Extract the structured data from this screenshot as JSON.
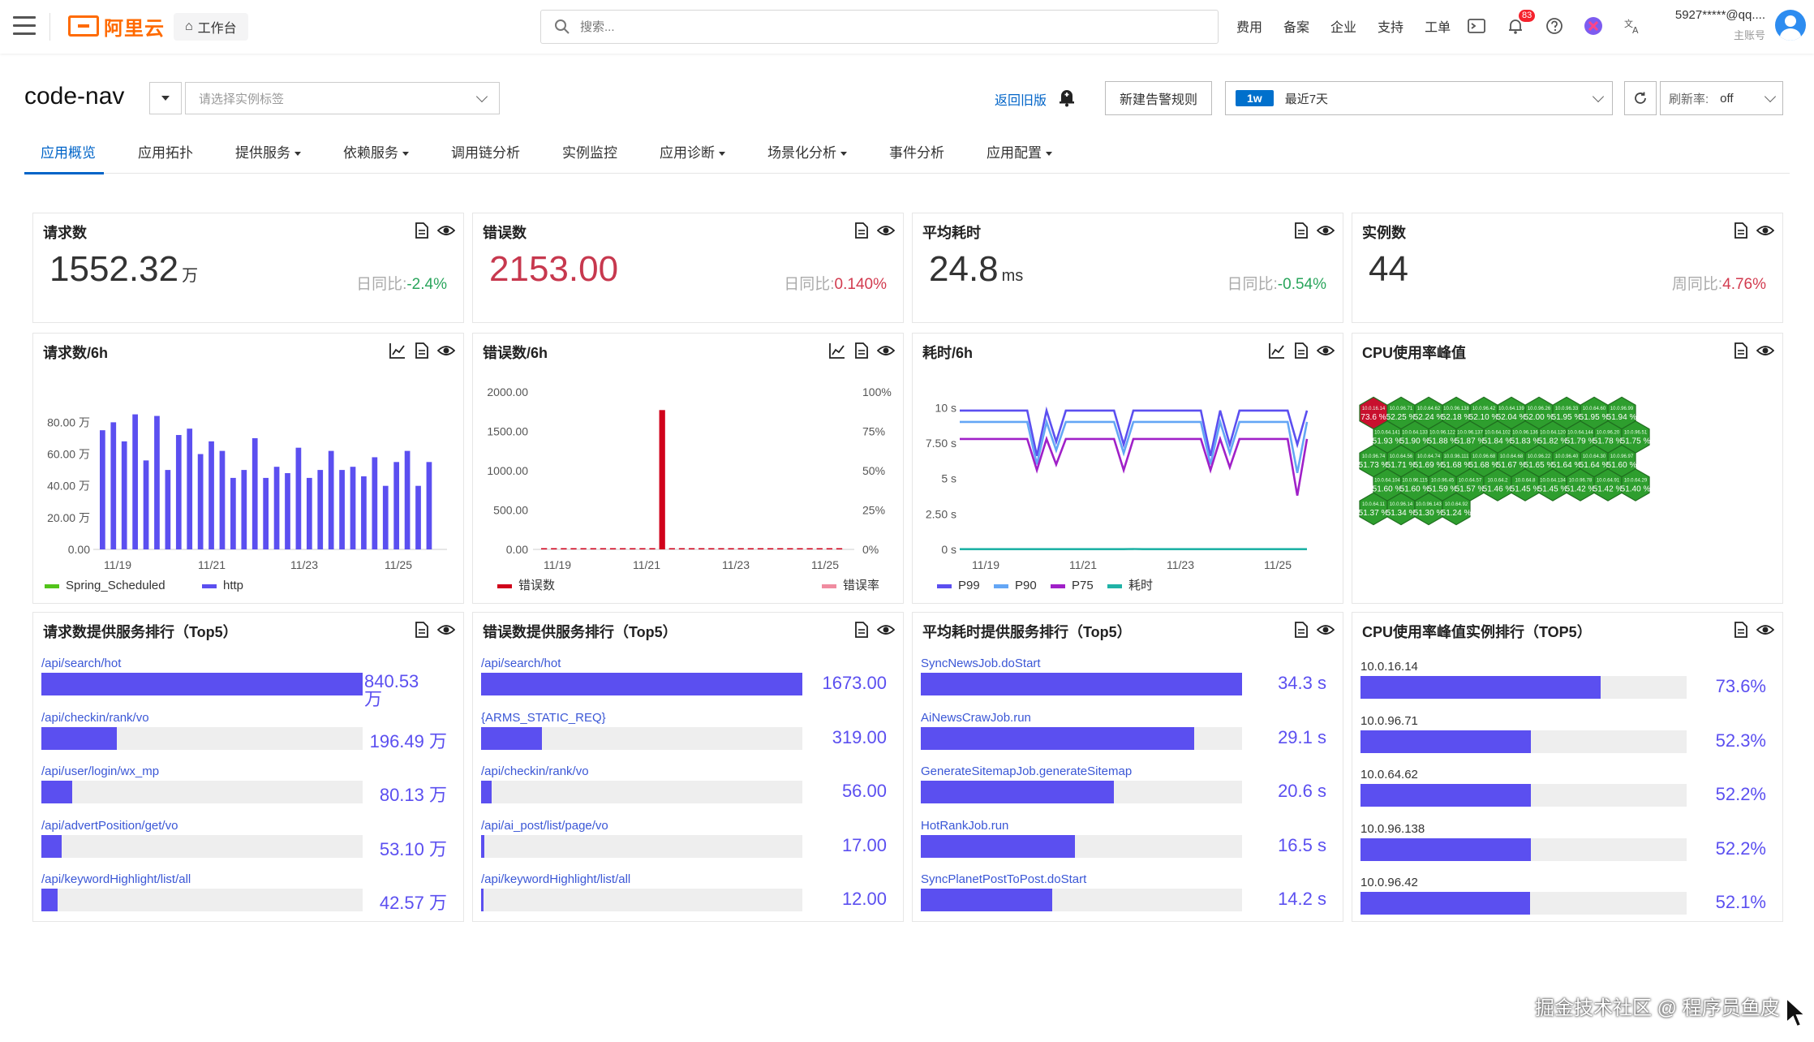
{
  "topbar": {
    "logo_text": "阿里云",
    "workbench": "工作台",
    "search_placeholder": "搜索...",
    "links": [
      "费用",
      "备案",
      "企业",
      "支持",
      "工单"
    ],
    "notification_count": "83",
    "account_name": "5927*****@qq....",
    "account_sub": "主账号"
  },
  "header": {
    "app_name": "code-nav",
    "tag_placeholder": "请选择实例标签",
    "back_old": "返回旧版",
    "new_alert": "新建告警规则",
    "range_tag": "1w",
    "range_text": "最近7天",
    "refresh_label": "刷新率:",
    "refresh_value": "off"
  },
  "tabs": [
    {
      "label": "应用概览",
      "dropdown": false
    },
    {
      "label": "应用拓扑",
      "dropdown": false
    },
    {
      "label": "提供服务",
      "dropdown": true
    },
    {
      "label": "依赖服务",
      "dropdown": true
    },
    {
      "label": "调用链分析",
      "dropdown": false
    },
    {
      "label": "实例监控",
      "dropdown": false
    },
    {
      "label": "应用诊断",
      "dropdown": true
    },
    {
      "label": "场景化分析",
      "dropdown": true
    },
    {
      "label": "事件分析",
      "dropdown": false
    },
    {
      "label": "应用配置",
      "dropdown": true
    }
  ],
  "stats": [
    {
      "title": "请求数",
      "value": "1552.32",
      "unit": "万",
      "cmp_label": "日同比:",
      "cmp_value": "-2.4%",
      "trend": "down",
      "value_color": "#333333"
    },
    {
      "title": "错误数",
      "value": "2153.00",
      "unit": "",
      "cmp_label": "日同比:",
      "cmp_value": "0.140%",
      "trend": "up",
      "value_color": "#c7384e"
    },
    {
      "title": "平均耗时",
      "value": "24.8",
      "unit": "ms",
      "cmp_label": "日同比:",
      "cmp_value": "-0.54%",
      "trend": "down",
      "value_color": "#333333"
    },
    {
      "title": "实例数",
      "value": "44",
      "unit": "",
      "cmp_label": "周同比:",
      "cmp_value": "4.76%",
      "trend": "up",
      "value_color": "#333333"
    }
  ],
  "chart_titles": [
    "请求数/6h",
    "错误数/6h",
    "耗时/6h",
    "CPU使用率峰值"
  ],
  "chart_data": [
    {
      "type": "bar",
      "title": "请求数/6h",
      "x_ticks": [
        "11/19",
        "11/21",
        "11/23",
        "11/25"
      ],
      "y_ticks": [
        "0.00",
        "20.00 万",
        "40.00 万",
        "60.00 万",
        "80.00 万"
      ],
      "ylim": [
        0,
        95
      ],
      "series": [
        {
          "name": "Spring_Scheduled",
          "color": "#52c41a",
          "values": []
        },
        {
          "name": "http",
          "color": "#5b4ff0",
          "values": [
            75,
            80,
            68,
            85,
            56,
            84,
            50,
            72,
            76,
            60,
            68,
            62,
            45,
            50,
            70,
            45,
            52,
            48,
            64,
            45,
            50,
            62,
            50,
            52,
            46,
            58,
            40,
            55,
            62,
            40,
            55
          ]
        }
      ]
    },
    {
      "type": "bar+line",
      "title": "错误数/6h",
      "x_ticks": [
        "11/19",
        "11/21",
        "11/23",
        "11/25"
      ],
      "y_ticks": [
        "0.00",
        "500.00",
        "1000.00",
        "1500.00",
        "2000.00"
      ],
      "y2_ticks": [
        "0%",
        "25%",
        "50%",
        "75%",
        "100%"
      ],
      "ylim": [
        0,
        2000
      ],
      "series": [
        {
          "name": "错误数",
          "color": "#d0021b",
          "values": [
            5,
            10,
            5,
            8,
            5,
            6,
            10,
            8,
            5,
            6,
            10,
            8,
            1770,
            6,
            5,
            8,
            12,
            8,
            6,
            10,
            8,
            6,
            5,
            8,
            10,
            8,
            6,
            5,
            8,
            6,
            5
          ]
        },
        {
          "name": "错误率",
          "color": "#f08ca0",
          "values": []
        }
      ]
    },
    {
      "type": "line",
      "title": "耗时/6h",
      "x_ticks": [
        "11/19",
        "11/21",
        "11/23",
        "11/25"
      ],
      "y_ticks": [
        "0 s",
        "2.50 s",
        "5 s",
        "7.50 s",
        "10 s"
      ],
      "ylim": [
        0,
        11
      ],
      "series": [
        {
          "name": "P99",
          "color": "#5b4ff0",
          "values": [
            9.8,
            9.8,
            9.8,
            9.8,
            9.8,
            9.8,
            9.8,
            9.8,
            6.6,
            9.8,
            7.6,
            9.8,
            9.8,
            9.8,
            9.8,
            9.8,
            9.8,
            7.4,
            9.8,
            9.8,
            9.8,
            9.8,
            9.8,
            9.8,
            9.8,
            9.8,
            6.6,
            9.8,
            7.4,
            9.8,
            9.8,
            9.8,
            9.8,
            9.8,
            9.8,
            7.4,
            9.8
          ]
        },
        {
          "name": "P90",
          "color": "#64a6f5",
          "values": [
            9.0,
            9.0,
            9.0,
            9.0,
            9.0,
            9.0,
            9.0,
            9.0,
            6.0,
            9.0,
            7.0,
            9.0,
            9.0,
            9.0,
            9.0,
            9.0,
            9.0,
            6.8,
            9.0,
            9.0,
            9.0,
            9.0,
            9.0,
            9.0,
            9.0,
            9.0,
            6.0,
            9.0,
            6.8,
            9.0,
            9.0,
            9.0,
            9.0,
            9.0,
            9.0,
            5.4,
            9.0
          ]
        },
        {
          "name": "P75",
          "color": "#a020c8",
          "values": [
            7.8,
            7.8,
            7.8,
            7.8,
            7.8,
            7.8,
            7.8,
            7.8,
            5.6,
            7.8,
            6.0,
            7.8,
            7.8,
            7.8,
            7.8,
            7.8,
            7.8,
            5.6,
            7.8,
            7.8,
            7.8,
            7.8,
            7.8,
            7.8,
            7.8,
            7.8,
            5.6,
            7.8,
            5.8,
            7.8,
            7.8,
            7.8,
            7.8,
            7.8,
            7.8,
            3.8,
            7.8
          ]
        },
        {
          "name": "耗时",
          "color": "#20b2a6",
          "values": [
            0.02,
            0.02,
            0.02,
            0.02,
            0.02,
            0.02,
            0.02,
            0.02,
            0.02,
            0.02,
            0.02,
            0.02,
            0.02,
            0.02,
            0.02,
            0.02,
            0.02,
            0.02,
            0.03,
            0.02,
            0.02,
            0.02,
            0.02,
            0.02,
            0.02,
            0.02,
            0.02,
            0.02,
            0.02,
            0.02,
            0.02,
            0.02,
            0.02,
            0.02,
            0.02,
            0.02,
            0.02
          ]
        }
      ]
    },
    {
      "type": "heatmap",
      "title": "CPU使用率峰值",
      "cells": [
        {
          "ip": "10.0.16.14",
          "value": "73.6 %"
        },
        {
          "ip": "10.0.96.71",
          "value": "52.25 %"
        },
        {
          "ip": "10.0.64.62",
          "value": "52.24 %"
        },
        {
          "ip": "10.0.96.138",
          "value": "52.18 %"
        },
        {
          "ip": "10.0.96.42",
          "value": "52.10 %"
        },
        {
          "ip": "10.0.64.139",
          "value": "52.04 %"
        },
        {
          "ip": "10.0.96.26",
          "value": "52.00 %"
        },
        {
          "ip": "10.0.96.33",
          "value": "51.95 %"
        },
        {
          "ip": "10.0.64.60",
          "value": "51.95 %"
        },
        {
          "ip": "10.0.96.99",
          "value": "51.94 %"
        },
        {
          "ip": "10.0.64.141",
          "value": "51.93 %"
        },
        {
          "ip": "10.0.64.133",
          "value": "51.90 %"
        },
        {
          "ip": "10.0.96.122",
          "value": "51.88 %"
        },
        {
          "ip": "10.0.96.137",
          "value": "51.87 %"
        },
        {
          "ip": "10.0.64.102",
          "value": "51.84 %"
        },
        {
          "ip": "10.0.96.136",
          "value": "51.83 %"
        },
        {
          "ip": "10.0.64.120",
          "value": "51.82 %"
        },
        {
          "ip": "10.0.64.144",
          "value": "51.79 %"
        },
        {
          "ip": "10.0.96.20",
          "value": "51.78 %"
        },
        {
          "ip": "10.0.96.51",
          "value": "51.75 %"
        },
        {
          "ip": "10.0.96.74",
          "value": "51.73 %"
        },
        {
          "ip": "10.0.64.56",
          "value": "51.71 %"
        },
        {
          "ip": "10.0.64.74",
          "value": "51.69 %"
        },
        {
          "ip": "10.0.96.111",
          "value": "51.68 %"
        },
        {
          "ip": "10.0.96.68",
          "value": "51.68 %"
        },
        {
          "ip": "10.0.64.68",
          "value": "51.67 %"
        },
        {
          "ip": "10.0.96.22",
          "value": "51.65 %"
        },
        {
          "ip": "10.0.96.40",
          "value": "51.64 %"
        },
        {
          "ip": "10.0.64.30",
          "value": "51.64 %"
        },
        {
          "ip": "10.0.96.97",
          "value": "51.60 %"
        },
        {
          "ip": "10.0.64.104",
          "value": "51.60 %"
        },
        {
          "ip": "10.0.96.115",
          "value": "51.60 %"
        },
        {
          "ip": "10.0.96.45",
          "value": "51.59 %"
        },
        {
          "ip": "10.0.64.57",
          "value": "51.57 %"
        },
        {
          "ip": "10.0.64.2",
          "value": "51.46 %"
        },
        {
          "ip": "10.0.64.8",
          "value": "51.45 %"
        },
        {
          "ip": "10.0.64.134",
          "value": "51.45 %"
        },
        {
          "ip": "10.0.96.78",
          "value": "51.42 %"
        },
        {
          "ip": "10.0.64.91",
          "value": "51.42 %"
        },
        {
          "ip": "10.0.64.29",
          "value": "51.40 %"
        },
        {
          "ip": "10.0.64.11",
          "value": "51.37 %"
        },
        {
          "ip": "10.0.96.14",
          "value": "51.34 %"
        },
        {
          "ip": "10.0.96.143",
          "value": "51.30 %"
        },
        {
          "ip": "10.0.64.92",
          "value": "51.24 %"
        }
      ]
    }
  ],
  "rankings": [
    {
      "title": "请求数提供服务排行（Top5）",
      "items": [
        {
          "label": "/api/search/hot",
          "value": "840.53 万",
          "ratio": 1.0
        },
        {
          "label": "/api/checkin/rank/vo",
          "value": "196.49 万",
          "ratio": 0.234
        },
        {
          "label": "/api/user/login/wx_mp",
          "value": "80.13 万",
          "ratio": 0.095
        },
        {
          "label": "/api/advertPosition/get/vo",
          "value": "53.10 万",
          "ratio": 0.063
        },
        {
          "label": "/api/keywordHighlight/list/all",
          "value": "42.57 万",
          "ratio": 0.051
        }
      ]
    },
    {
      "title": "错误数提供服务排行（Top5）",
      "items": [
        {
          "label": "/api/search/hot",
          "value": "1673.00",
          "ratio": 1.0
        },
        {
          "label": "{ARMS_STATIC_REQ}",
          "value": "319.00",
          "ratio": 0.19
        },
        {
          "label": "/api/checkin/rank/vo",
          "value": "56.00",
          "ratio": 0.033
        },
        {
          "label": "/api/ai_post/list/page/vo",
          "value": "17.00",
          "ratio": 0.01
        },
        {
          "label": "/api/keywordHighlight/list/all",
          "value": "12.00",
          "ratio": 0.007
        }
      ]
    },
    {
      "title": "平均耗时提供服务排行（Top5）",
      "items": [
        {
          "label": "SyncNewsJob.doStart",
          "value": "34.3 s",
          "ratio": 1.0
        },
        {
          "label": "AiNewsCrawJob.run",
          "value": "29.1 s",
          "ratio": 0.85
        },
        {
          "label": "GenerateSitemapJob.generateSitemap",
          "value": "20.6 s",
          "ratio": 0.6
        },
        {
          "label": "HotRankJob.run",
          "value": "16.5 s",
          "ratio": 0.48
        },
        {
          "label": "SyncPlanetPostToPost.doStart",
          "value": "14.2 s",
          "ratio": 0.41
        }
      ]
    },
    {
      "title": "CPU使用率峰值实例排行（TOP5）",
      "items": [
        {
          "label": "10.0.16.14",
          "value": "73.6%",
          "ratio": 0.736
        },
        {
          "label": "10.0.96.71",
          "value": "52.3%",
          "ratio": 0.523
        },
        {
          "label": "10.0.64.62",
          "value": "52.2%",
          "ratio": 0.522
        },
        {
          "label": "10.0.96.138",
          "value": "52.2%",
          "ratio": 0.522
        },
        {
          "label": "10.0.96.42",
          "value": "52.1%",
          "ratio": 0.521
        }
      ]
    }
  ],
  "watermark": "掘金技术社区 @ 程序员鱼皮",
  "colors": {
    "accent": "#0064c8",
    "bar": "#5b4ff0",
    "error": "#d0021b",
    "hex_green": "#2e9e2e",
    "hex_red": "#c8102e"
  }
}
